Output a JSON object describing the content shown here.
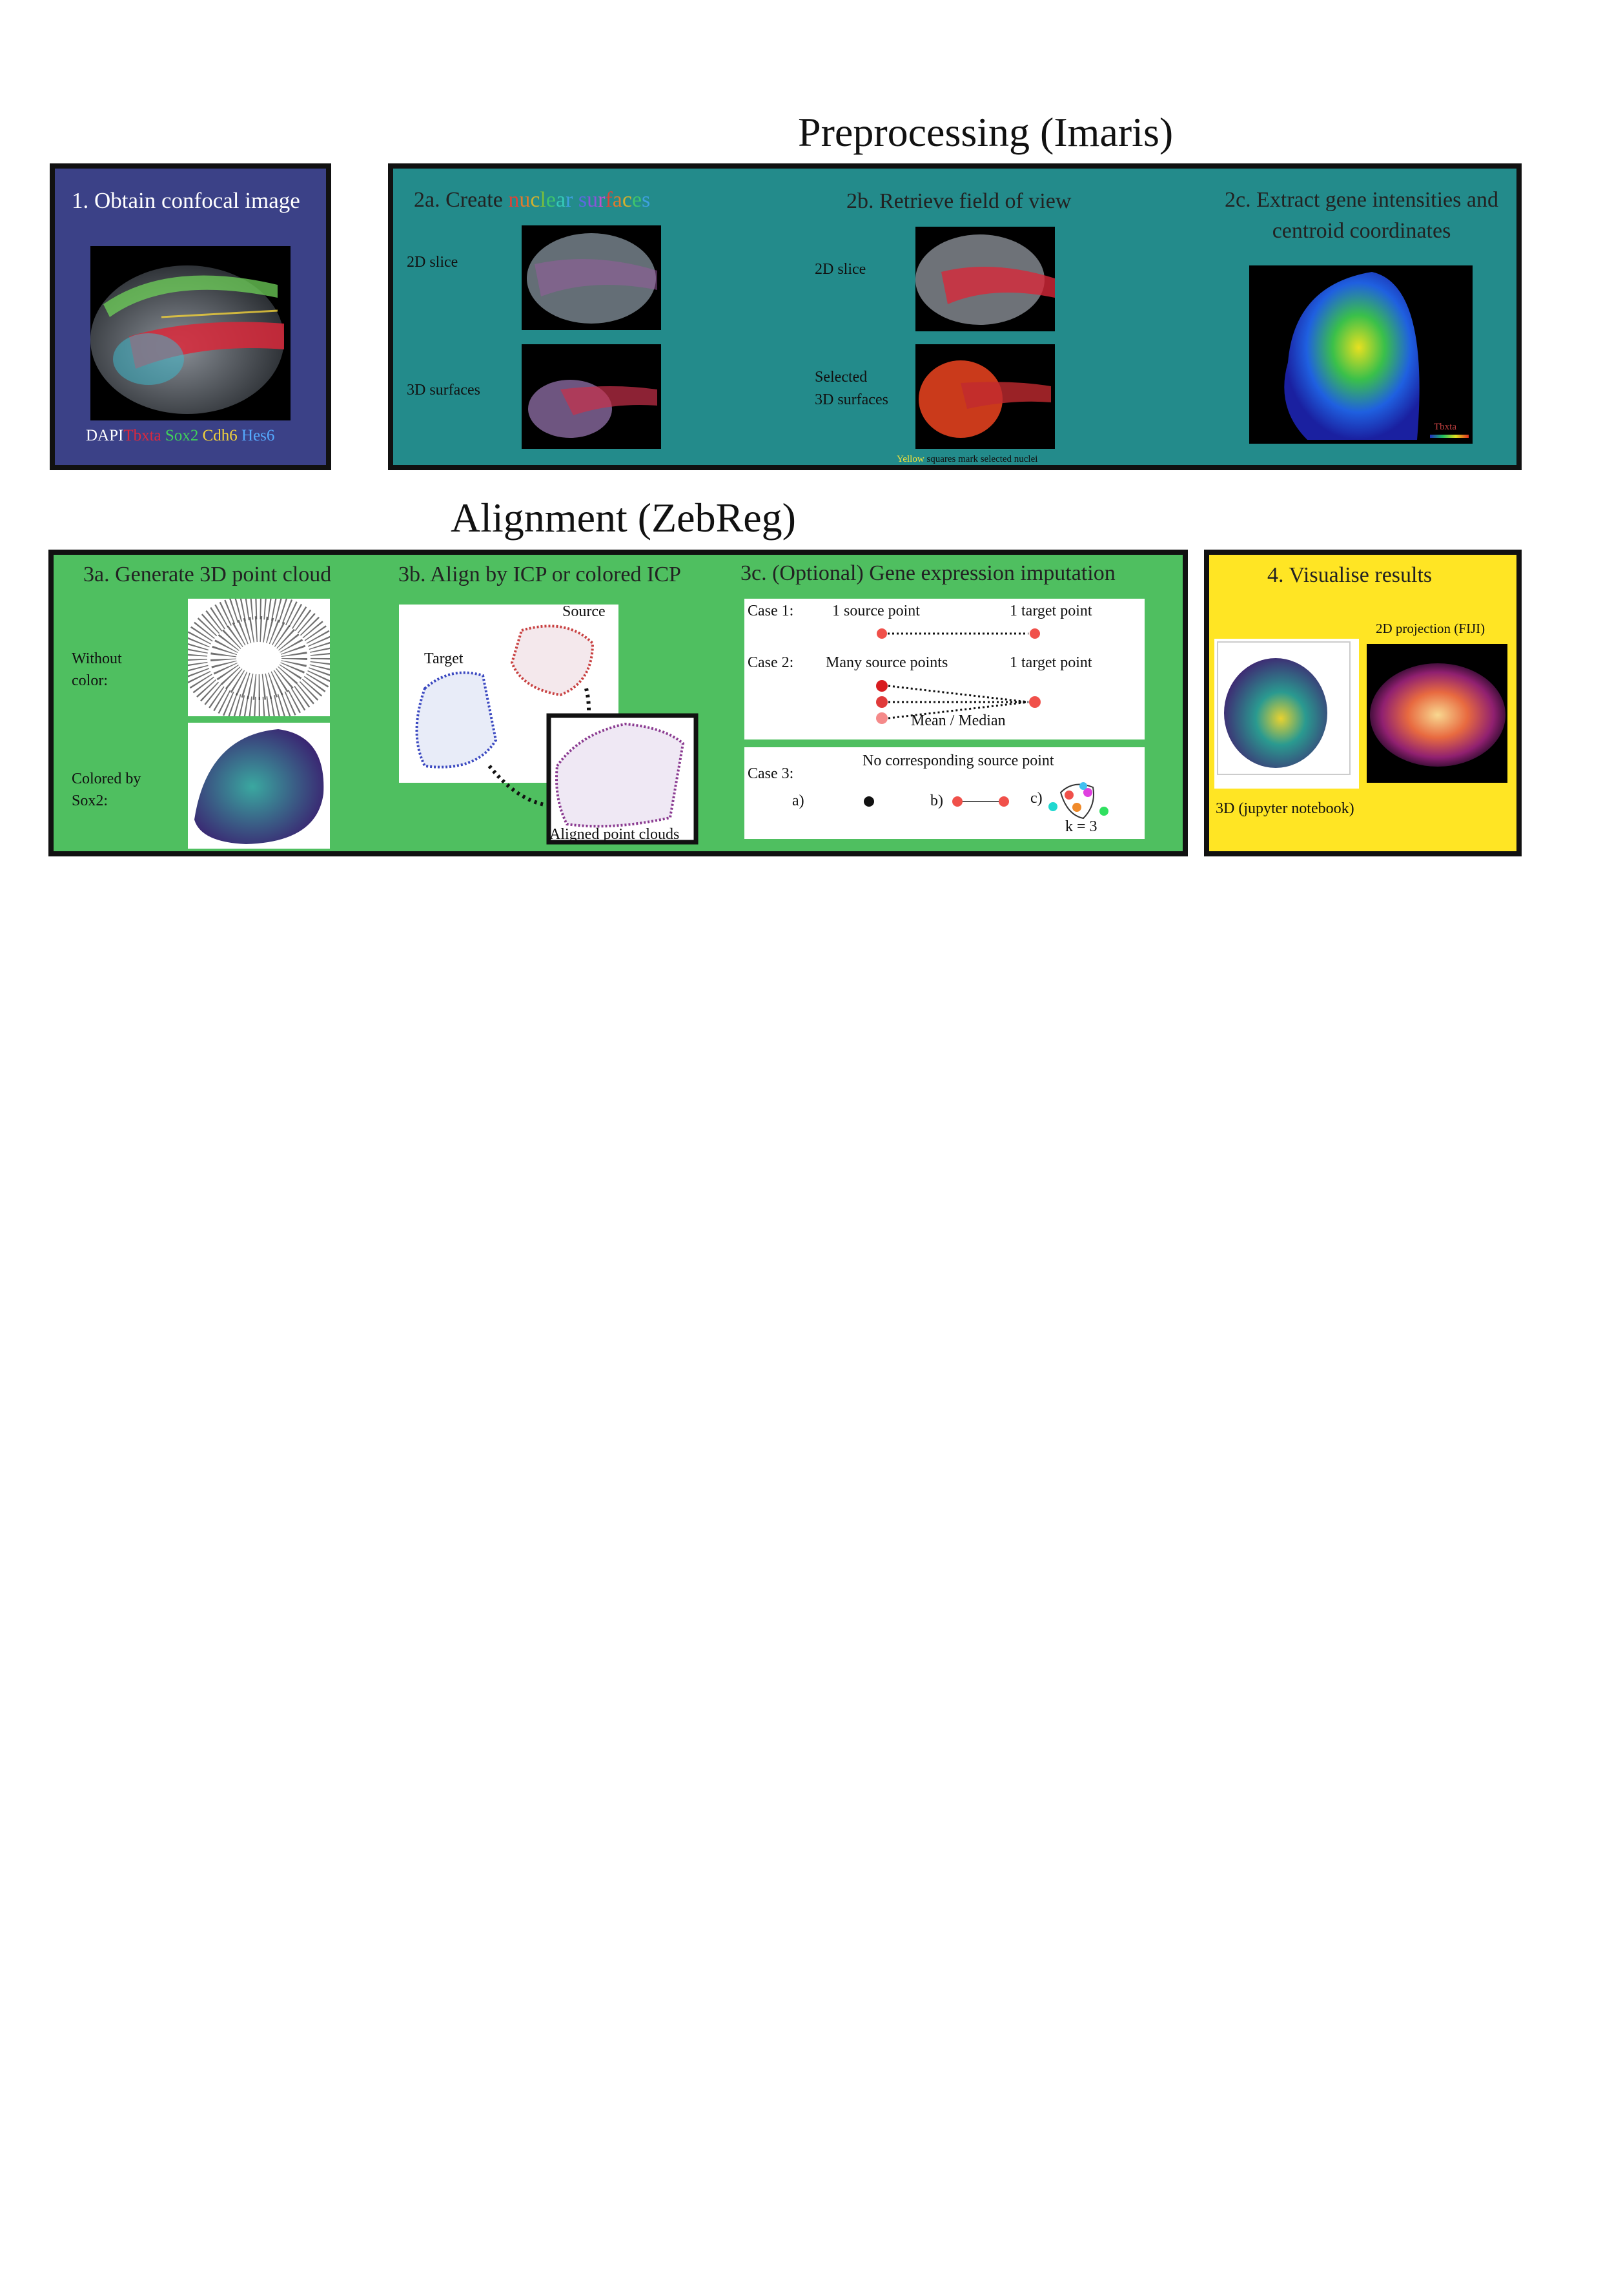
{
  "sections": {
    "preprocessing": "Preprocessing (Imaris)",
    "alignment": "Alignment (ZebReg)"
  },
  "panel1": {
    "title": "1. Obtain confocal image",
    "legend": [
      "DAPI",
      "Tbxta",
      "Sox2",
      "Cdh6",
      "Hes6"
    ],
    "legend_colors": [
      "#ffffff",
      "#e0283c",
      "#3fd15a",
      "#f2d23a",
      "#55aaff"
    ]
  },
  "panel2": {
    "a": {
      "title_prefix": "2a. Create ",
      "title_colored": [
        "n",
        "u",
        "c",
        "l",
        "e",
        "a",
        "r",
        " ",
        "s",
        "u",
        "r",
        "f",
        "a",
        "c",
        "e",
        "s"
      ],
      "title_colors": [
        "#d9453a",
        "#e07a2e",
        "#d2b12e",
        "#7cbf3a",
        "#3fc46b",
        "#35c9b8",
        "#3fa0e0",
        "#ffffff",
        "#5a6ae0",
        "#8a55d9",
        "#c24fd0",
        "#d9453a",
        "#e07a2e",
        "#d2b12e",
        "#3fc46b",
        "#3fa0e0"
      ],
      "label_2d": "2D slice",
      "label_3d": "3D surfaces"
    },
    "b": {
      "title": "2b. Retrieve field of view",
      "label_2d": "2D slice",
      "label_selected_1": "Selected",
      "label_selected_2": "3D surfaces",
      "caption_yellow": "Yellow",
      "caption_rest": " squares mark selected nuclei"
    },
    "c": {
      "title_1": "2c. Extract gene intensities and",
      "title_2": "centroid coordinates",
      "colorbar_label": "Tbxta"
    }
  },
  "panel3": {
    "a": {
      "title": "3a. Generate 3D point cloud",
      "label_without_1": "Without",
      "label_without_2": "color:",
      "label_colored_1": "Colored by",
      "label_colored_2": "Sox2:"
    },
    "b": {
      "title": "3b. Align by ICP or colored ICP",
      "label_source": "Source",
      "label_target": "Target",
      "label_aligned": "Aligned point clouds"
    },
    "c": {
      "title": "3c. (Optional) Gene expression imputation",
      "case1": "Case 1:",
      "case1_left": "1 source point",
      "case1_right": "1 target point",
      "case2": "Case 2:",
      "case2_left": "Many source points",
      "case2_right": "1 target point",
      "case2_bottom": "Mean / Median",
      "case3": "Case 3:",
      "case3_title": "No corresponding source point",
      "opt_a": "a)",
      "opt_b": "b)",
      "opt_c": "c)",
      "k_label": "k = 3"
    }
  },
  "panel4": {
    "title": "4.  Visualise results",
    "label_2d": "2D projection (FIJI)",
    "label_3d": "3D (jupyter notebook)"
  },
  "colors": {
    "panel1_bg": "#3b4187",
    "panel2_bg": "#238b8b",
    "panel3_bg": "#4fbf60",
    "panel4_bg": "#ffe524",
    "point_red": "#f0504a"
  }
}
